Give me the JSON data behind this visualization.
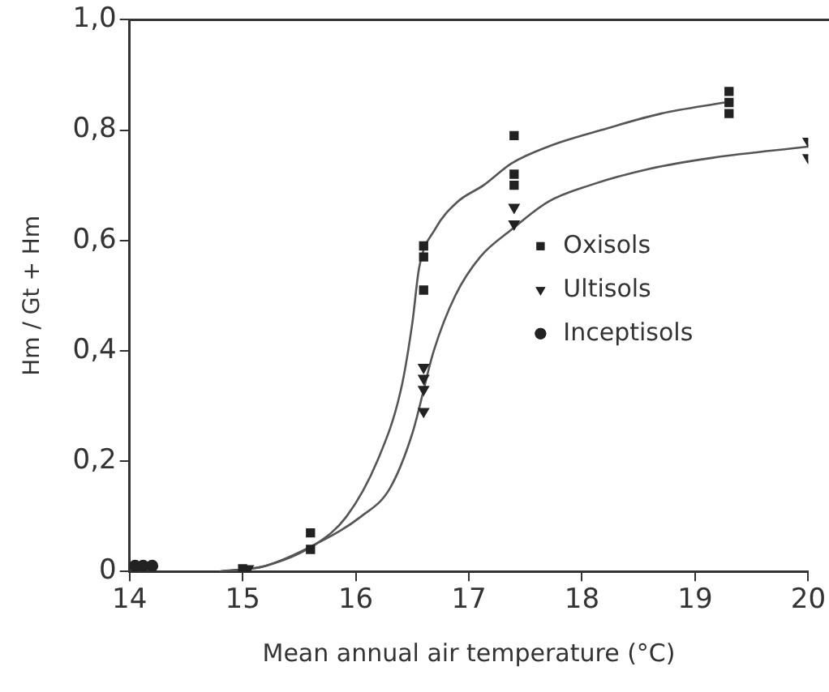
{
  "chart_data": {
    "type": "scatter",
    "xlabel": "Mean annual air temperature (°C)",
    "ylabel": "Hm / Gt + Hm",
    "xlim": [
      14,
      20
    ],
    "xticks": [
      14,
      15,
      16,
      17,
      18,
      19,
      20
    ],
    "ylim": [
      0,
      1
    ],
    "yticks": [
      {
        "value": 0,
        "label": "0"
      },
      {
        "value": 0.2,
        "label": "0,2"
      },
      {
        "value": 0.4,
        "label": "0,4"
      },
      {
        "value": 0.6,
        "label": "0,6"
      },
      {
        "value": 0.8,
        "label": "0,8"
      },
      {
        "value": 1,
        "label": "1,0"
      }
    ],
    "grid": false,
    "legend": "right",
    "series": [
      {
        "name": "Oxisols",
        "color": "#222222",
        "marker": "square",
        "x": [
          15.0,
          15.6,
          15.6,
          16.6,
          16.6,
          16.6,
          17.4,
          17.4,
          17.4,
          19.3,
          19.3,
          19.3
        ],
        "values": [
          0.005,
          0.07,
          0.04,
          0.59,
          0.57,
          0.51,
          0.79,
          0.72,
          0.7,
          0.87,
          0.85,
          0.83
        ]
      },
      {
        "name": "Ultisols",
        "color": "#222222",
        "marker": "triangle",
        "x": [
          15.05,
          16.6,
          16.6,
          16.6,
          16.6,
          17.4,
          17.4,
          20,
          20
        ],
        "values": [
          0.005,
          0.37,
          0.35,
          0.33,
          0.29,
          0.66,
          0.63,
          0.78,
          0.75
        ]
      },
      {
        "name": "Inceptisols",
        "color": "#222222",
        "marker": "circle",
        "x": [
          14.05,
          14.12,
          14.2
        ],
        "values": [
          0.01,
          0.01,
          0.01
        ]
      },
      {
        "type": "line",
        "color": "#555555",
        "marker": "none",
        "x": [
          14.8,
          15.2,
          15.65,
          15.92,
          16.19,
          16.4,
          16.5,
          16.56,
          16.7,
          16.9,
          17.13,
          17.38,
          17.7,
          18.17,
          18.7,
          19.26
        ],
        "values": [
          0,
          0.01,
          0.05,
          0.1,
          0.2,
          0.33,
          0.45,
          0.55,
          0.62,
          0.67,
          0.7,
          0.74,
          0.77,
          0.8,
          0.83,
          0.85
        ]
      },
      {
        "type": "line",
        "color": "#555555",
        "marker": "none",
        "x": [
          14.8,
          15.2,
          15.65,
          16.05,
          16.3,
          16.5,
          16.69,
          16.88,
          17.1,
          17.38,
          17.7,
          18.07,
          18.6,
          19.16,
          20
        ],
        "values": [
          0,
          0.01,
          0.05,
          0.1,
          0.15,
          0.25,
          0.4,
          0.5,
          0.57,
          0.62,
          0.67,
          0.7,
          0.73,
          0.75,
          0.77
        ]
      }
    ]
  }
}
